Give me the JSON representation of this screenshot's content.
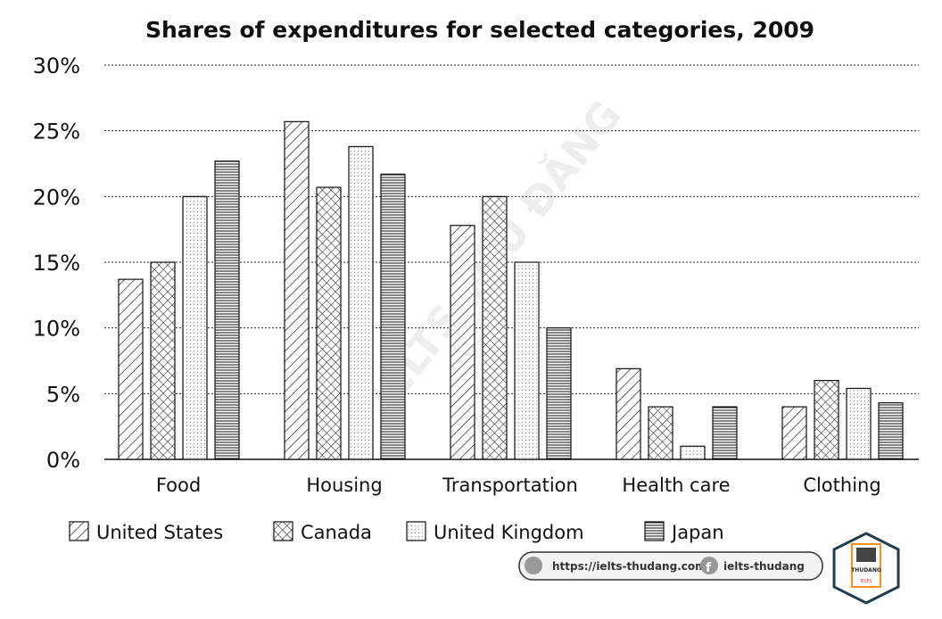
{
  "chart_data": {
    "type": "bar",
    "title": "Shares of expenditures for selected categories, 2009",
    "xlabel": "",
    "ylabel": "",
    "ylim": [
      0,
      30
    ],
    "yticks": [
      "0%",
      "5%",
      "10%",
      "15%",
      "20%",
      "25%",
      "30%"
    ],
    "grid": true,
    "legend_position": "bottom",
    "categories": [
      "Food",
      "Housing",
      "Transportation",
      "Health care",
      "Clothing"
    ],
    "series": [
      {
        "name": "United States",
        "pattern": "diagonal",
        "values": [
          13.7,
          25.7,
          17.8,
          6.9,
          4.0
        ]
      },
      {
        "name": "Canada",
        "pattern": "crosshatch",
        "values": [
          15.0,
          20.7,
          20.0,
          4.0,
          6.0
        ]
      },
      {
        "name": "United Kingdom",
        "pattern": "dots",
        "values": [
          20.0,
          23.8,
          15.0,
          1.0,
          5.4
        ]
      },
      {
        "name": "Japan",
        "pattern": "horizontal",
        "values": [
          22.7,
          21.7,
          10.0,
          4.0,
          4.3
        ]
      }
    ]
  },
  "footer": {
    "website": "https://ielts-thudang.com",
    "facebook": "ielts-thudang",
    "logo_text": "THUDANG",
    "logo_sub": "IELTS"
  },
  "watermark": "IELTS THU ĐĂNG"
}
